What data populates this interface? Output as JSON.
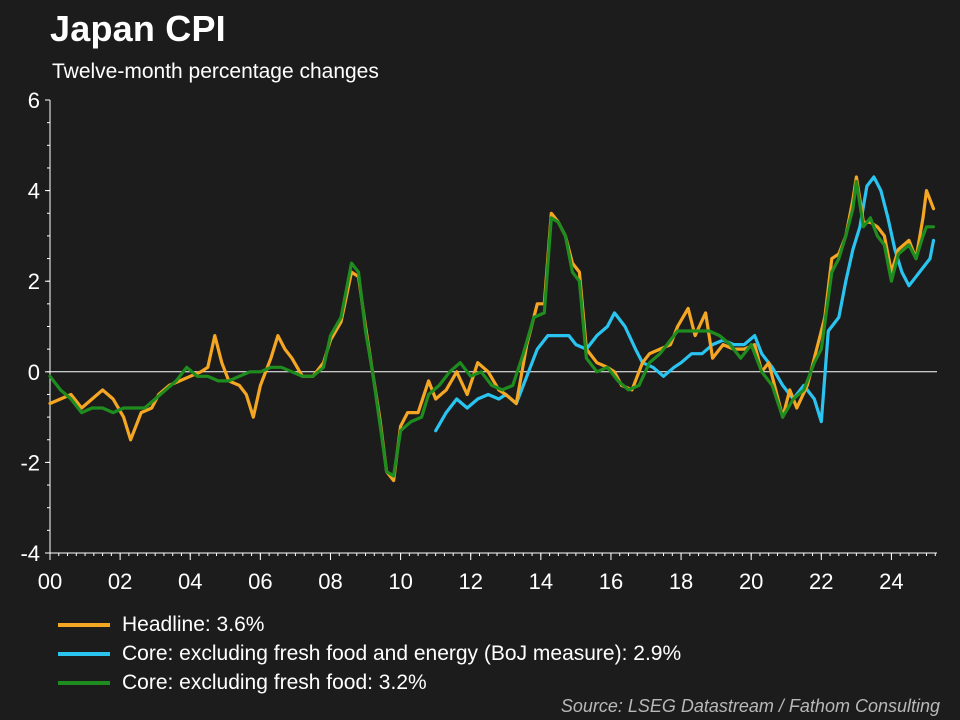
{
  "header": {
    "title": "Japan CPI",
    "subtitle": "Twelve-month percentage changes"
  },
  "source": "Source: LSEG Datastream / Fathom Consulting",
  "chart_data": {
    "type": "line",
    "title": "Japan CPI",
    "subtitle": "Twelve-month percentage changes",
    "xlabel": "",
    "ylabel": "",
    "xlim": [
      2000,
      2025.3
    ],
    "ylim": [
      -4,
      6
    ],
    "y_ticks": [
      "6",
      "4",
      "2",
      "0",
      "-2",
      "-4"
    ],
    "x_ticks": [
      "00",
      "02",
      "04",
      "06",
      "08",
      "10",
      "12",
      "14",
      "16",
      "18",
      "20",
      "22",
      "24"
    ],
    "grid": false,
    "zero_line": true,
    "legend_position": "bottom",
    "series": [
      {
        "name": "Headline: 3.6%",
        "color": "#f5a623",
        "points": [
          [
            2000.0,
            -0.7
          ],
          [
            2000.3,
            -0.6
          ],
          [
            2000.6,
            -0.5
          ],
          [
            2000.9,
            -0.8
          ],
          [
            2001.2,
            -0.6
          ],
          [
            2001.5,
            -0.4
          ],
          [
            2001.8,
            -0.6
          ],
          [
            2002.1,
            -1.0
          ],
          [
            2002.3,
            -1.5
          ],
          [
            2002.6,
            -0.9
          ],
          [
            2002.9,
            -0.8
          ],
          [
            2003.1,
            -0.5
          ],
          [
            2003.4,
            -0.3
          ],
          [
            2003.7,
            -0.2
          ],
          [
            2004.0,
            -0.1
          ],
          [
            2004.3,
            0.0
          ],
          [
            2004.5,
            0.1
          ],
          [
            2004.7,
            0.8
          ],
          [
            2004.9,
            0.2
          ],
          [
            2005.1,
            -0.2
          ],
          [
            2005.4,
            -0.3
          ],
          [
            2005.6,
            -0.5
          ],
          [
            2005.8,
            -1.0
          ],
          [
            2006.0,
            -0.3
          ],
          [
            2006.3,
            0.3
          ],
          [
            2006.5,
            0.8
          ],
          [
            2006.7,
            0.5
          ],
          [
            2006.9,
            0.3
          ],
          [
            2007.2,
            -0.1
          ],
          [
            2007.5,
            -0.1
          ],
          [
            2007.8,
            0.2
          ],
          [
            2008.0,
            0.7
          ],
          [
            2008.3,
            1.1
          ],
          [
            2008.6,
            2.2
          ],
          [
            2008.8,
            2.1
          ],
          [
            2009.0,
            1.0
          ],
          [
            2009.2,
            0.0
          ],
          [
            2009.4,
            -1.0
          ],
          [
            2009.6,
            -2.2
          ],
          [
            2009.8,
            -2.4
          ],
          [
            2010.0,
            -1.2
          ],
          [
            2010.2,
            -0.9
          ],
          [
            2010.5,
            -0.9
          ],
          [
            2010.8,
            -0.2
          ],
          [
            2011.0,
            -0.6
          ],
          [
            2011.3,
            -0.4
          ],
          [
            2011.6,
            0.0
          ],
          [
            2011.9,
            -0.5
          ],
          [
            2012.2,
            0.2
          ],
          [
            2012.5,
            0.0
          ],
          [
            2012.8,
            -0.4
          ],
          [
            2013.0,
            -0.5
          ],
          [
            2013.3,
            -0.7
          ],
          [
            2013.6,
            0.6
          ],
          [
            2013.9,
            1.5
          ],
          [
            2014.1,
            1.5
          ],
          [
            2014.3,
            3.5
          ],
          [
            2014.5,
            3.3
          ],
          [
            2014.7,
            3.0
          ],
          [
            2014.9,
            2.4
          ],
          [
            2015.1,
            2.2
          ],
          [
            2015.3,
            0.5
          ],
          [
            2015.6,
            0.2
          ],
          [
            2015.9,
            0.1
          ],
          [
            2016.1,
            0.0
          ],
          [
            2016.3,
            -0.3
          ],
          [
            2016.6,
            -0.4
          ],
          [
            2016.9,
            0.2
          ],
          [
            2017.1,
            0.4
          ],
          [
            2017.4,
            0.5
          ],
          [
            2017.7,
            0.6
          ],
          [
            2017.9,
            1.0
          ],
          [
            2018.2,
            1.4
          ],
          [
            2018.4,
            0.8
          ],
          [
            2018.7,
            1.3
          ],
          [
            2018.9,
            0.3
          ],
          [
            2019.2,
            0.6
          ],
          [
            2019.5,
            0.5
          ],
          [
            2019.8,
            0.5
          ],
          [
            2020.1,
            0.6
          ],
          [
            2020.3,
            0.0
          ],
          [
            2020.5,
            0.2
          ],
          [
            2020.7,
            -0.4
          ],
          [
            2020.9,
            -1.0
          ],
          [
            2021.1,
            -0.4
          ],
          [
            2021.3,
            -0.8
          ],
          [
            2021.6,
            -0.3
          ],
          [
            2021.9,
            0.6
          ],
          [
            2022.1,
            1.2
          ],
          [
            2022.3,
            2.5
          ],
          [
            2022.5,
            2.6
          ],
          [
            2022.7,
            3.0
          ],
          [
            2022.9,
            3.8
          ],
          [
            2023.0,
            4.3
          ],
          [
            2023.2,
            3.3
          ],
          [
            2023.4,
            3.3
          ],
          [
            2023.6,
            3.2
          ],
          [
            2023.8,
            3.0
          ],
          [
            2024.0,
            2.2
          ],
          [
            2024.2,
            2.7
          ],
          [
            2024.5,
            2.9
          ],
          [
            2024.7,
            2.5
          ],
          [
            2024.9,
            3.4
          ],
          [
            2025.0,
            4.0
          ],
          [
            2025.2,
            3.6
          ]
        ]
      },
      {
        "name": "Core: excluding fresh food and energy (BoJ measure): 2.9%",
        "color": "#29c4f0",
        "points": [
          [
            2011.0,
            -1.3
          ],
          [
            2011.3,
            -0.9
          ],
          [
            2011.6,
            -0.6
          ],
          [
            2011.9,
            -0.8
          ],
          [
            2012.2,
            -0.6
          ],
          [
            2012.5,
            -0.5
          ],
          [
            2012.8,
            -0.6
          ],
          [
            2013.0,
            -0.5
          ],
          [
            2013.3,
            -0.7
          ],
          [
            2013.6,
            -0.1
          ],
          [
            2013.9,
            0.5
          ],
          [
            2014.2,
            0.8
          ],
          [
            2014.5,
            0.8
          ],
          [
            2014.8,
            0.8
          ],
          [
            2015.0,
            0.6
          ],
          [
            2015.3,
            0.5
          ],
          [
            2015.6,
            0.8
          ],
          [
            2015.9,
            1.0
          ],
          [
            2016.1,
            1.3
          ],
          [
            2016.4,
            1.0
          ],
          [
            2016.7,
            0.5
          ],
          [
            2016.9,
            0.2
          ],
          [
            2017.2,
            0.1
          ],
          [
            2017.5,
            -0.1
          ],
          [
            2017.8,
            0.1
          ],
          [
            2018.0,
            0.2
          ],
          [
            2018.3,
            0.4
          ],
          [
            2018.6,
            0.4
          ],
          [
            2018.9,
            0.6
          ],
          [
            2019.2,
            0.7
          ],
          [
            2019.5,
            0.6
          ],
          [
            2019.8,
            0.6
          ],
          [
            2020.1,
            0.8
          ],
          [
            2020.3,
            0.4
          ],
          [
            2020.6,
            0.1
          ],
          [
            2020.9,
            -0.3
          ],
          [
            2021.2,
            -0.6
          ],
          [
            2021.5,
            -0.3
          ],
          [
            2021.8,
            -0.6
          ],
          [
            2022.0,
            -1.1
          ],
          [
            2022.2,
            0.9
          ],
          [
            2022.5,
            1.2
          ],
          [
            2022.7,
            2.0
          ],
          [
            2022.9,
            2.7
          ],
          [
            2023.1,
            3.2
          ],
          [
            2023.3,
            4.1
          ],
          [
            2023.5,
            4.3
          ],
          [
            2023.7,
            4.0
          ],
          [
            2023.9,
            3.4
          ],
          [
            2024.1,
            2.7
          ],
          [
            2024.3,
            2.2
          ],
          [
            2024.5,
            1.9
          ],
          [
            2024.7,
            2.1
          ],
          [
            2024.9,
            2.3
          ],
          [
            2025.1,
            2.5
          ],
          [
            2025.2,
            2.9
          ]
        ]
      },
      {
        "name": "Core: excluding fresh food: 3.2%",
        "color": "#1e8c1e",
        "points": [
          [
            2000.0,
            -0.1
          ],
          [
            2000.3,
            -0.4
          ],
          [
            2000.6,
            -0.6
          ],
          [
            2000.9,
            -0.9
          ],
          [
            2001.2,
            -0.8
          ],
          [
            2001.5,
            -0.8
          ],
          [
            2001.8,
            -0.9
          ],
          [
            2002.1,
            -0.8
          ],
          [
            2002.4,
            -0.8
          ],
          [
            2002.7,
            -0.8
          ],
          [
            2003.0,
            -0.6
          ],
          [
            2003.3,
            -0.4
          ],
          [
            2003.6,
            -0.2
          ],
          [
            2003.9,
            0.1
          ],
          [
            2004.2,
            -0.1
          ],
          [
            2004.5,
            -0.1
          ],
          [
            2004.8,
            -0.2
          ],
          [
            2005.1,
            -0.2
          ],
          [
            2005.4,
            -0.1
          ],
          [
            2005.7,
            0.0
          ],
          [
            2006.0,
            0.0
          ],
          [
            2006.3,
            0.1
          ],
          [
            2006.6,
            0.1
          ],
          [
            2006.9,
            0.0
          ],
          [
            2007.2,
            -0.1
          ],
          [
            2007.5,
            -0.1
          ],
          [
            2007.8,
            0.1
          ],
          [
            2008.0,
            0.8
          ],
          [
            2008.3,
            1.2
          ],
          [
            2008.6,
            2.4
          ],
          [
            2008.8,
            2.2
          ],
          [
            2009.0,
            0.9
          ],
          [
            2009.2,
            0.0
          ],
          [
            2009.4,
            -1.1
          ],
          [
            2009.6,
            -2.2
          ],
          [
            2009.8,
            -2.3
          ],
          [
            2010.0,
            -1.3
          ],
          [
            2010.3,
            -1.1
          ],
          [
            2010.6,
            -1.0
          ],
          [
            2010.8,
            -0.5
          ],
          [
            2011.1,
            -0.3
          ],
          [
            2011.4,
            0.0
          ],
          [
            2011.7,
            0.2
          ],
          [
            2012.0,
            -0.1
          ],
          [
            2012.3,
            0.0
          ],
          [
            2012.6,
            -0.3
          ],
          [
            2012.9,
            -0.4
          ],
          [
            2013.2,
            -0.3
          ],
          [
            2013.5,
            0.4
          ],
          [
            2013.8,
            1.2
          ],
          [
            2014.1,
            1.3
          ],
          [
            2014.3,
            3.4
          ],
          [
            2014.5,
            3.3
          ],
          [
            2014.7,
            3.0
          ],
          [
            2014.9,
            2.2
          ],
          [
            2015.1,
            2.0
          ],
          [
            2015.3,
            0.3
          ],
          [
            2015.6,
            0.0
          ],
          [
            2015.9,
            0.1
          ],
          [
            2016.2,
            -0.2
          ],
          [
            2016.5,
            -0.4
          ],
          [
            2016.8,
            -0.3
          ],
          [
            2017.1,
            0.2
          ],
          [
            2017.4,
            0.4
          ],
          [
            2017.7,
            0.7
          ],
          [
            2017.9,
            0.9
          ],
          [
            2018.2,
            0.9
          ],
          [
            2018.5,
            0.9
          ],
          [
            2018.8,
            0.9
          ],
          [
            2019.1,
            0.8
          ],
          [
            2019.4,
            0.6
          ],
          [
            2019.7,
            0.3
          ],
          [
            2020.0,
            0.6
          ],
          [
            2020.3,
            0.0
          ],
          [
            2020.6,
            -0.3
          ],
          [
            2020.9,
            -1.0
          ],
          [
            2021.2,
            -0.6
          ],
          [
            2021.5,
            -0.4
          ],
          [
            2021.8,
            0.2
          ],
          [
            2022.0,
            0.5
          ],
          [
            2022.3,
            2.2
          ],
          [
            2022.5,
            2.5
          ],
          [
            2022.7,
            3.0
          ],
          [
            2022.9,
            3.6
          ],
          [
            2023.0,
            4.2
          ],
          [
            2023.2,
            3.2
          ],
          [
            2023.4,
            3.4
          ],
          [
            2023.6,
            3.0
          ],
          [
            2023.8,
            2.8
          ],
          [
            2024.0,
            2.0
          ],
          [
            2024.2,
            2.6
          ],
          [
            2024.5,
            2.8
          ],
          [
            2024.7,
            2.5
          ],
          [
            2024.9,
            3.0
          ],
          [
            2025.0,
            3.2
          ],
          [
            2025.2,
            3.2
          ]
        ]
      }
    ]
  }
}
